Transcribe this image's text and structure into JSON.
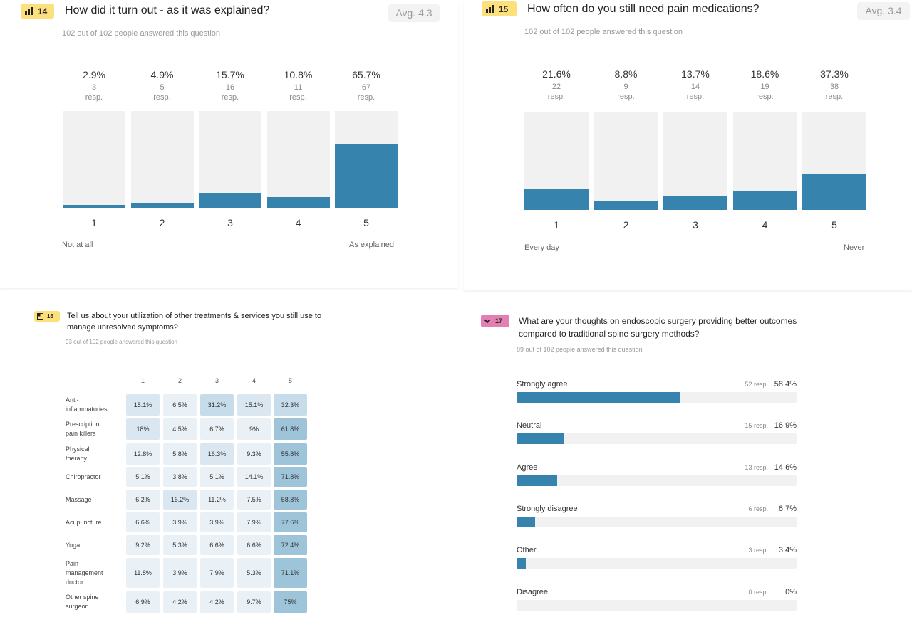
{
  "colors": {
    "bar_fill": "#3684ae",
    "bar_track": "#f1f1f1",
    "badge_yellow": "#fbe07c",
    "badge_pink": "#e37fb2"
  },
  "q14": {
    "number": "14",
    "badge_icon": "bar-chart-icon",
    "title": "How did it turn out - as it was explained?",
    "answered": "102 out of 102 people answered this question",
    "avg": "Avg. 4.3",
    "scale_min_label": "Not at all",
    "scale_max_label": "As explained",
    "columns": [
      {
        "label": "1",
        "pct": "2.9%",
        "count": "3",
        "resp": "resp."
      },
      {
        "label": "2",
        "pct": "4.9%",
        "count": "5",
        "resp": "resp."
      },
      {
        "label": "3",
        "pct": "15.7%",
        "count": "16",
        "resp": "resp."
      },
      {
        "label": "4",
        "pct": "10.8%",
        "count": "11",
        "resp": "resp."
      },
      {
        "label": "5",
        "pct": "65.7%",
        "count": "67",
        "resp": "resp."
      }
    ]
  },
  "q15": {
    "number": "15",
    "badge_icon": "bar-chart-icon",
    "title": "How often do you still need pain medications?",
    "answered": "102 out of 102 people answered this question",
    "avg": "Avg. 3.4",
    "scale_min_label": "Every day",
    "scale_max_label": "Never",
    "columns": [
      {
        "label": "1",
        "pct": "21.6%",
        "count": "22",
        "resp": "resp."
      },
      {
        "label": "2",
        "pct": "8.8%",
        "count": "9",
        "resp": "resp."
      },
      {
        "label": "3",
        "pct": "13.7%",
        "count": "14",
        "resp": "resp."
      },
      {
        "label": "4",
        "pct": "18.6%",
        "count": "19",
        "resp": "resp."
      },
      {
        "label": "5",
        "pct": "37.3%",
        "count": "38",
        "resp": "resp."
      }
    ]
  },
  "q16": {
    "number": "16",
    "badge_icon": "matrix-icon",
    "title_line1": "Tell us about your utilization of other treatments & services you still use to",
    "title_line2": "manage unresolved symptoms?",
    "answered": "93 out of 102 people answered this question",
    "headers": [
      "1",
      "2",
      "3",
      "4",
      "5"
    ],
    "rows": [
      {
        "label": [
          "Anti-",
          "inflammatories"
        ],
        "cells": [
          "15.1%",
          "6.5%",
          "31.2%",
          "15.1%",
          "32.3%"
        ]
      },
      {
        "label": [
          "Prescription",
          "pain killers"
        ],
        "cells": [
          "18%",
          "4.5%",
          "6.7%",
          "9%",
          "61.8%"
        ]
      },
      {
        "label": [
          "Physical",
          "therapy"
        ],
        "cells": [
          "12.8%",
          "5.8%",
          "16.3%",
          "9.3%",
          "55.8%"
        ]
      },
      {
        "label": [
          "Chiropractor"
        ],
        "cells": [
          "5.1%",
          "3.8%",
          "5.1%",
          "14.1%",
          "71.8%"
        ]
      },
      {
        "label": [
          "Massage"
        ],
        "cells": [
          "6.2%",
          "16.2%",
          "11.2%",
          "7.5%",
          "58.8%"
        ]
      },
      {
        "label": [
          "Acupuncture"
        ],
        "cells": [
          "6.6%",
          "3.9%",
          "3.9%",
          "7.9%",
          "77.6%"
        ]
      },
      {
        "label": [
          "Yoga"
        ],
        "cells": [
          "9.2%",
          "5.3%",
          "6.6%",
          "6.6%",
          "72.4%"
        ]
      },
      {
        "label": [
          "Pain",
          "management",
          "doctor"
        ],
        "cells": [
          "11.8%",
          "3.9%",
          "7.9%",
          "5.3%",
          "71.1%"
        ]
      },
      {
        "label": [
          "Other spine",
          "surgeon"
        ],
        "cells": [
          "6.9%",
          "4.2%",
          "4.2%",
          "9.7%",
          "75%"
        ]
      }
    ]
  },
  "q17": {
    "number": "17",
    "badge_icon": "chevron-down-icon",
    "title_line1": "What are your thoughts on endoscopic surgery providing better outcomes",
    "title_line2": "compared to traditional spine surgery methods?",
    "answered": "89 out of 102 people answered this question",
    "options": [
      {
        "label": "Strongly agree",
        "resp": "52 resp.",
        "pct": "58.4%",
        "value": 58.4
      },
      {
        "label": "Neutral",
        "resp": "15 resp.",
        "pct": "16.9%",
        "value": 16.9
      },
      {
        "label": "Agree",
        "resp": "13 resp.",
        "pct": "14.6%",
        "value": 14.6
      },
      {
        "label": "Strongly disagree",
        "resp": "6 resp.",
        "pct": "6.7%",
        "value": 6.7
      },
      {
        "label": "Other",
        "resp": "3 resp.",
        "pct": "3.4%",
        "value": 3.4
      },
      {
        "label": "Disagree",
        "resp": "0 resp.",
        "pct": "0%",
        "value": 0
      }
    ]
  }
}
